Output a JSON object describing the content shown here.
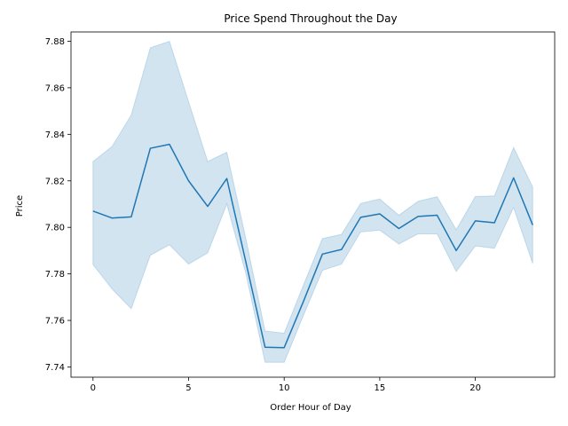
{
  "chart_data": {
    "type": "line",
    "title": "Price Spend Throughout the Day",
    "xlabel": "Order Hour of Day",
    "ylabel": "Price",
    "xlim": [
      -1.15,
      24.15
    ],
    "ylim": [
      7.7356,
      7.884
    ],
    "x_ticks": [
      0,
      5,
      10,
      15,
      20
    ],
    "y_ticks": [
      7.74,
      7.76,
      7.78,
      7.8,
      7.82,
      7.84,
      7.86,
      7.88
    ],
    "grid": false,
    "legend": "none",
    "colors": {
      "line": "#1f77b4",
      "band": "#1f77b4"
    },
    "series": [
      {
        "x": [
          0,
          1,
          2,
          3,
          4,
          5,
          6,
          7,
          8,
          9,
          10,
          11,
          12,
          13,
          14,
          15,
          16,
          17,
          18,
          19,
          20,
          21,
          22,
          23
        ],
        "y": [
          7.807,
          7.804,
          7.8045,
          7.834,
          7.8357,
          7.82,
          7.809,
          7.821,
          7.785,
          7.7485,
          7.7483,
          7.768,
          7.7885,
          7.7905,
          7.8043,
          7.8058,
          7.7995,
          7.8047,
          7.8052,
          7.79,
          7.8028,
          7.802,
          7.8213,
          7.801
        ],
        "ci_low": [
          7.784,
          7.7735,
          7.765,
          7.788,
          7.7925,
          7.7842,
          7.789,
          7.81,
          7.78,
          7.742,
          7.742,
          7.762,
          7.7815,
          7.7842,
          7.798,
          7.7988,
          7.7928,
          7.7972,
          7.7972,
          7.781,
          7.792,
          7.791,
          7.8085,
          7.7845
        ],
        "ci_high": [
          7.8283,
          7.8348,
          7.8483,
          7.8772,
          7.88,
          7.854,
          7.8283,
          7.8323,
          7.795,
          7.7555,
          7.7545,
          7.775,
          7.7952,
          7.797,
          7.8103,
          7.8122,
          7.8052,
          7.8112,
          7.8132,
          7.799,
          7.8133,
          7.8135,
          7.8343,
          7.8173
        ]
      }
    ]
  }
}
